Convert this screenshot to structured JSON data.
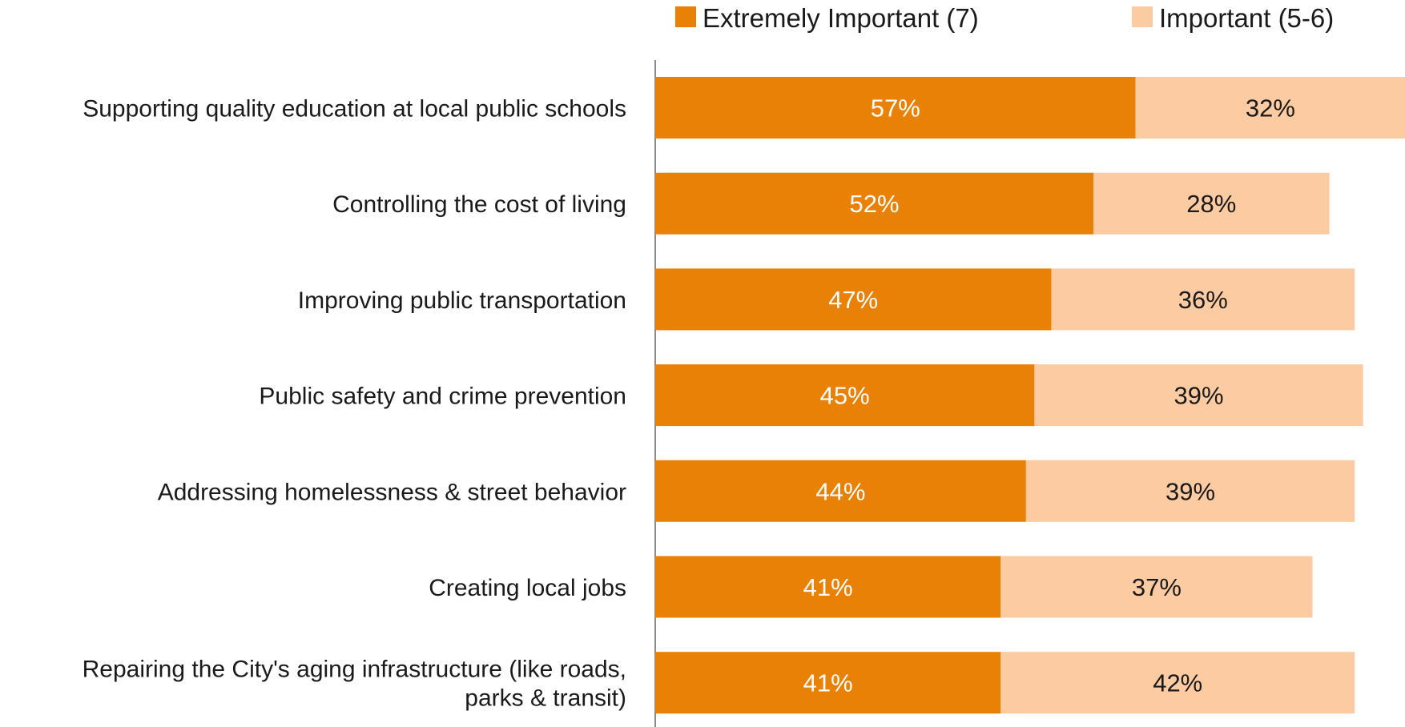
{
  "chart_data": {
    "type": "bar",
    "orientation": "horizontal",
    "stacked": true,
    "categories": [
      [
        "Supporting quality education at local public schools"
      ],
      [
        "Controlling the cost of living"
      ],
      [
        "Improving public transportation"
      ],
      [
        "Public safety and crime prevention"
      ],
      [
        "Addressing homelessness & street behavior"
      ],
      [
        "Creating local jobs"
      ],
      [
        "Repairing the City's aging infrastructure (like roads,",
        "parks & transit)"
      ]
    ],
    "series": [
      {
        "name": "Extremely Important (7)",
        "color": "#E98106",
        "label_color": "#ffffff",
        "values": [
          57,
          52,
          47,
          45,
          44,
          41,
          41
        ]
      },
      {
        "name": "Important (5-6)",
        "color": "#FCCBA1",
        "label_color": "#1a1a1a",
        "values": [
          32,
          28,
          36,
          39,
          39,
          37,
          42
        ]
      }
    ],
    "value_suffix": "%",
    "xlim": [
      0,
      100
    ],
    "grid": false,
    "legend_position": "top-right"
  }
}
